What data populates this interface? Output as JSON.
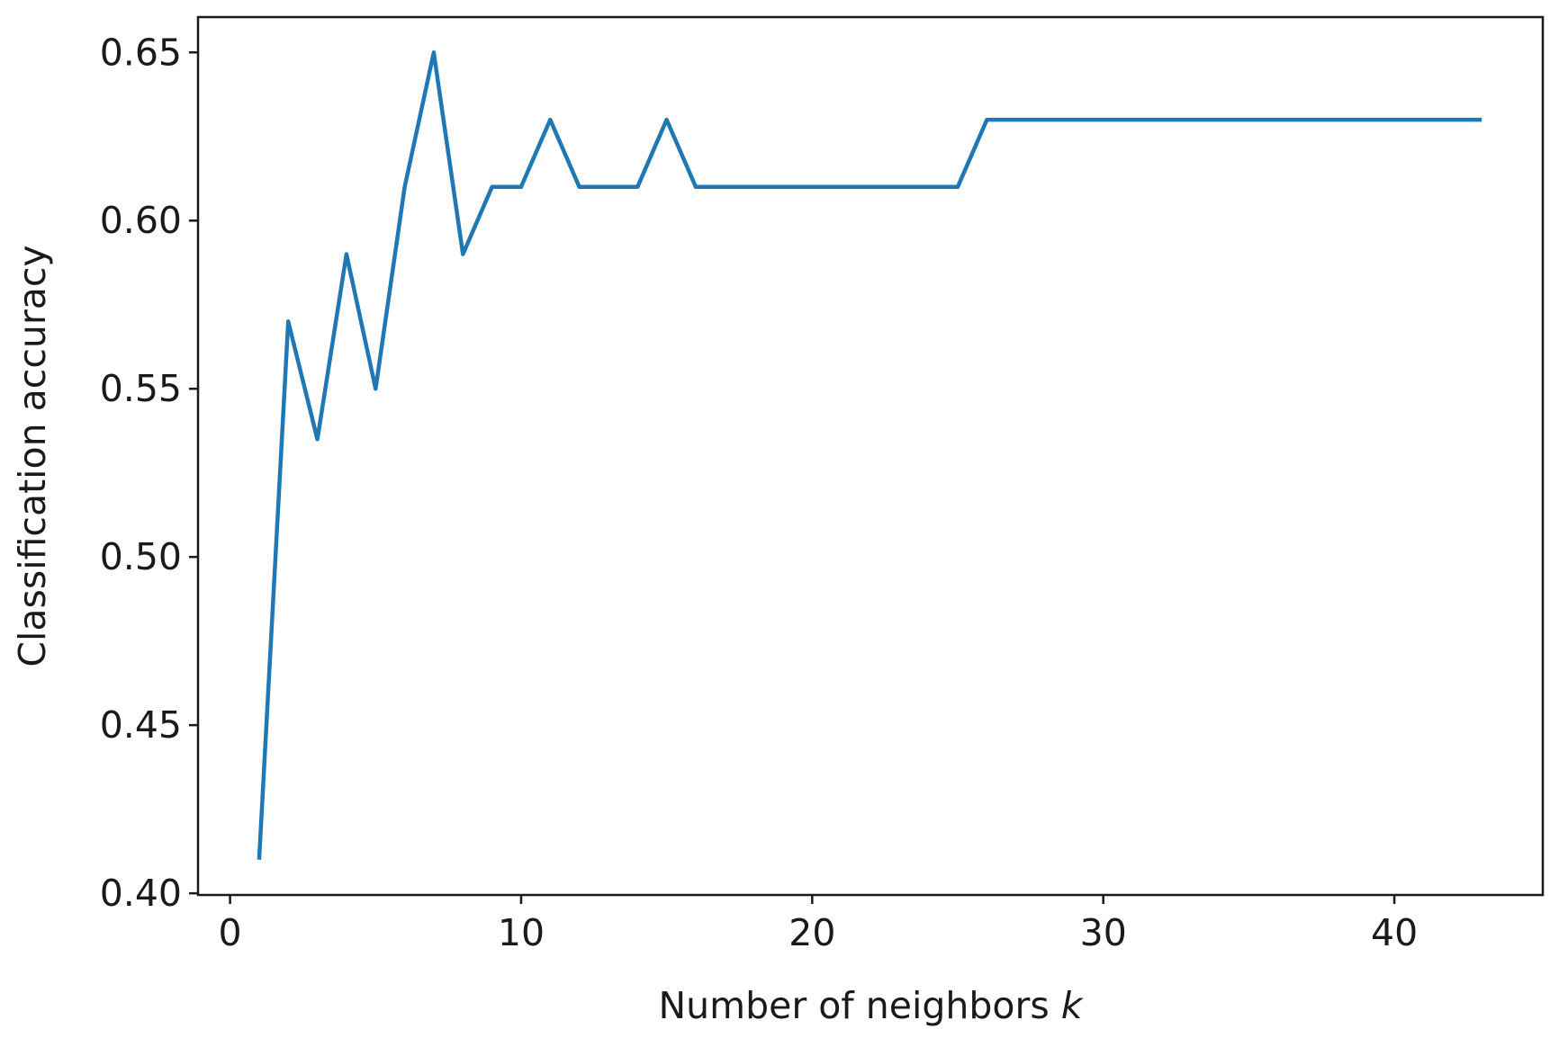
{
  "chart_data": {
    "type": "line",
    "title": "",
    "xlabel": "Number of neighbors ",
    "xlabel_var": "k",
    "ylabel": "Classification accuracy",
    "xlim": [
      -1.1,
      45.1
    ],
    "ylim": [
      0.3995,
      0.6605
    ],
    "x_ticks": [
      0,
      10,
      20,
      30,
      40
    ],
    "x_tick_labels": [
      "0",
      "10",
      "20",
      "30",
      "40"
    ],
    "y_ticks": [
      0.4,
      0.45,
      0.5,
      0.55,
      0.6,
      0.65
    ],
    "y_tick_labels": [
      "0.40",
      "0.45",
      "0.50",
      "0.55",
      "0.60",
      "0.65"
    ],
    "grid": false,
    "series": [
      {
        "color": "#1f77b4",
        "x": [
          1,
          2,
          3,
          4,
          5,
          6,
          7,
          8,
          9,
          10,
          11,
          12,
          13,
          14,
          15,
          16,
          17,
          18,
          19,
          20,
          21,
          22,
          23,
          24,
          25,
          26,
          27,
          28,
          29,
          30,
          31,
          32,
          33,
          34,
          35,
          36,
          37,
          38,
          39,
          40,
          41,
          42,
          43
        ],
        "values": [
          0.41,
          0.57,
          0.535,
          0.59,
          0.55,
          0.61,
          0.65,
          0.59,
          0.61,
          0.61,
          0.63,
          0.61,
          0.61,
          0.61,
          0.63,
          0.61,
          0.61,
          0.61,
          0.61,
          0.61,
          0.61,
          0.61,
          0.61,
          0.61,
          0.61,
          0.63,
          0.63,
          0.63,
          0.63,
          0.63,
          0.63,
          0.63,
          0.63,
          0.63,
          0.63,
          0.63,
          0.63,
          0.63,
          0.63,
          0.63,
          0.63,
          0.63,
          0.63
        ]
      }
    ]
  }
}
